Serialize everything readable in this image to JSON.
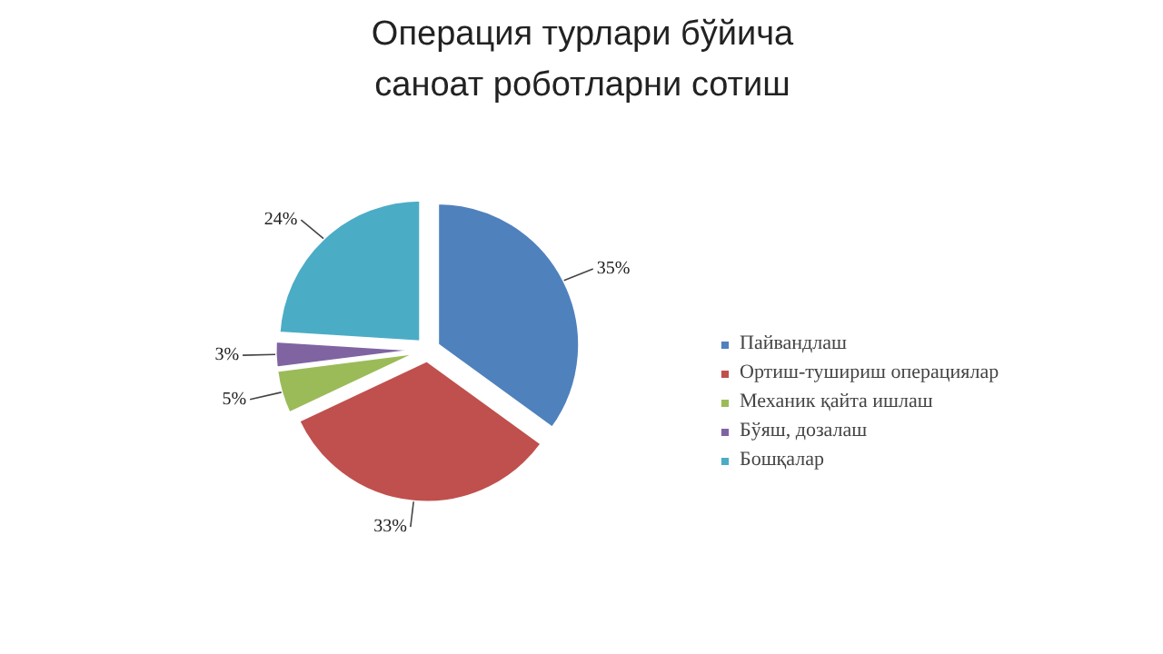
{
  "chart_data": {
    "type": "pie",
    "title": "Операция турлари бўйича саноат роботларни сотиш",
    "categories": [
      "Пайвандлаш",
      "Ортиш-тушириш операциялар",
      "Механик қайта ишлаш",
      "Бўяш, дозалаш",
      "Бошқалар"
    ],
    "values": [
      35,
      33,
      5,
      3,
      24
    ],
    "colors": [
      "#4f81bd",
      "#c0504d",
      "#9bbb59",
      "#8064a2",
      "#4bacc6"
    ],
    "value_labels": [
      "35%",
      "33%",
      "5%",
      "3%",
      "24%"
    ],
    "legend": "right"
  }
}
